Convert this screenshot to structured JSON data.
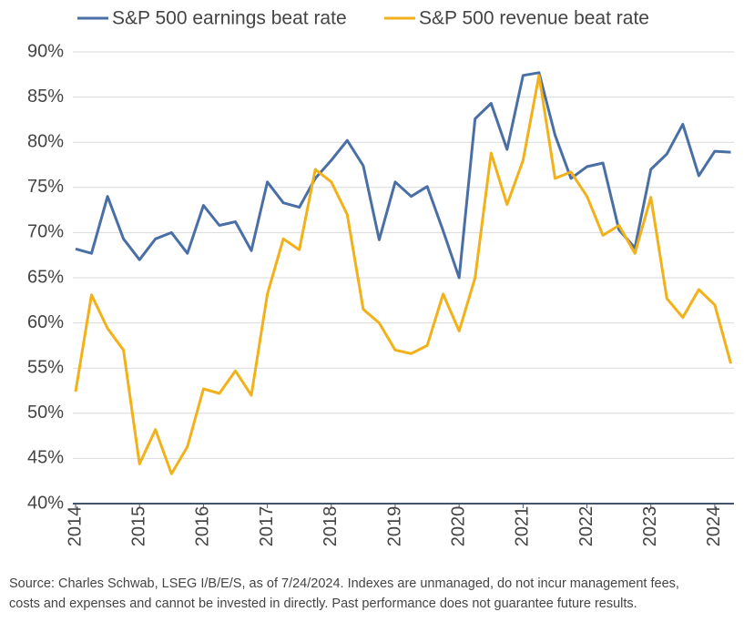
{
  "chart_data": {
    "type": "line",
    "x": [
      2014,
      2014.25,
      2014.5,
      2014.75,
      2015,
      2015.25,
      2015.5,
      2015.75,
      2016,
      2016.25,
      2016.5,
      2016.75,
      2017,
      2017.25,
      2017.5,
      2017.75,
      2018,
      2018.25,
      2018.5,
      2018.75,
      2019,
      2019.25,
      2019.5,
      2019.75,
      2020,
      2020.25,
      2020.5,
      2020.75,
      2021,
      2021.25,
      2021.5,
      2021.75,
      2022,
      2022.25,
      2022.5,
      2022.75,
      2023,
      2023.25,
      2023.5,
      2023.75,
      2024,
      2024.25
    ],
    "series": [
      {
        "name": "S&P 500 earnings beat rate",
        "color": "#4a6fa5",
        "values": [
          68.2,
          67.7,
          74,
          69.3,
          67,
          69.3,
          70,
          67.7,
          73,
          70.8,
          71.2,
          68,
          75.6,
          73.3,
          72.8,
          76,
          78,
          80.2,
          77.4,
          69.2,
          75.6,
          74,
          75.1,
          70.2,
          65,
          82.6,
          84.3,
          79.2,
          87.4,
          87.7,
          80.8,
          76,
          77.3,
          77.7,
          70.3,
          68.3,
          77,
          78.7,
          82,
          76.3,
          79,
          78.9
        ]
      },
      {
        "name": "S&P 500 revenue beat rate",
        "color": "#f2b118",
        "values": [
          52.4,
          63.1,
          59.4,
          57,
          44.4,
          48.2,
          43.3,
          46.3,
          52.7,
          52.2,
          54.7,
          52,
          63.2,
          69.3,
          68.1,
          77,
          75.6,
          72,
          61.5,
          60,
          57,
          56.6,
          57.5,
          63.2,
          59.1,
          65,
          78.8,
          73.1,
          78,
          87.4,
          76,
          76.7,
          74,
          69.7,
          70.8,
          67.7,
          73.9,
          62.7,
          60.6,
          63.7,
          62,
          55.5
        ]
      }
    ],
    "xlim": [
      2014,
      2024.3
    ],
    "xticks": [
      2014,
      2015,
      2016,
      2017,
      2018,
      2019,
      2020,
      2021,
      2022,
      2023,
      2024
    ],
    "ylim": [
      40,
      90
    ],
    "yticks": [
      {
        "value": 40,
        "label": "40%"
      },
      {
        "value": 45,
        "label": "45%"
      },
      {
        "value": 50,
        "label": "50%"
      },
      {
        "value": 55,
        "label": "55%"
      },
      {
        "value": 60,
        "label": "60%"
      },
      {
        "value": 65,
        "label": "65%"
      },
      {
        "value": 70,
        "label": "70%"
      },
      {
        "value": 75,
        "label": "75%"
      },
      {
        "value": 80,
        "label": "80%"
      },
      {
        "value": 85,
        "label": "85%"
      },
      {
        "value": 90,
        "label": "90%"
      }
    ],
    "grid": true,
    "legend": "top",
    "source": [
      "Source: Charles Schwab, LSEG I/B/E/S, as of 7/24/2024.  Indexes are unmanaged, do not incur management fees,",
      "costs and expenses and cannot be invested in directly.  Past performance does not guarantee future results."
    ]
  }
}
